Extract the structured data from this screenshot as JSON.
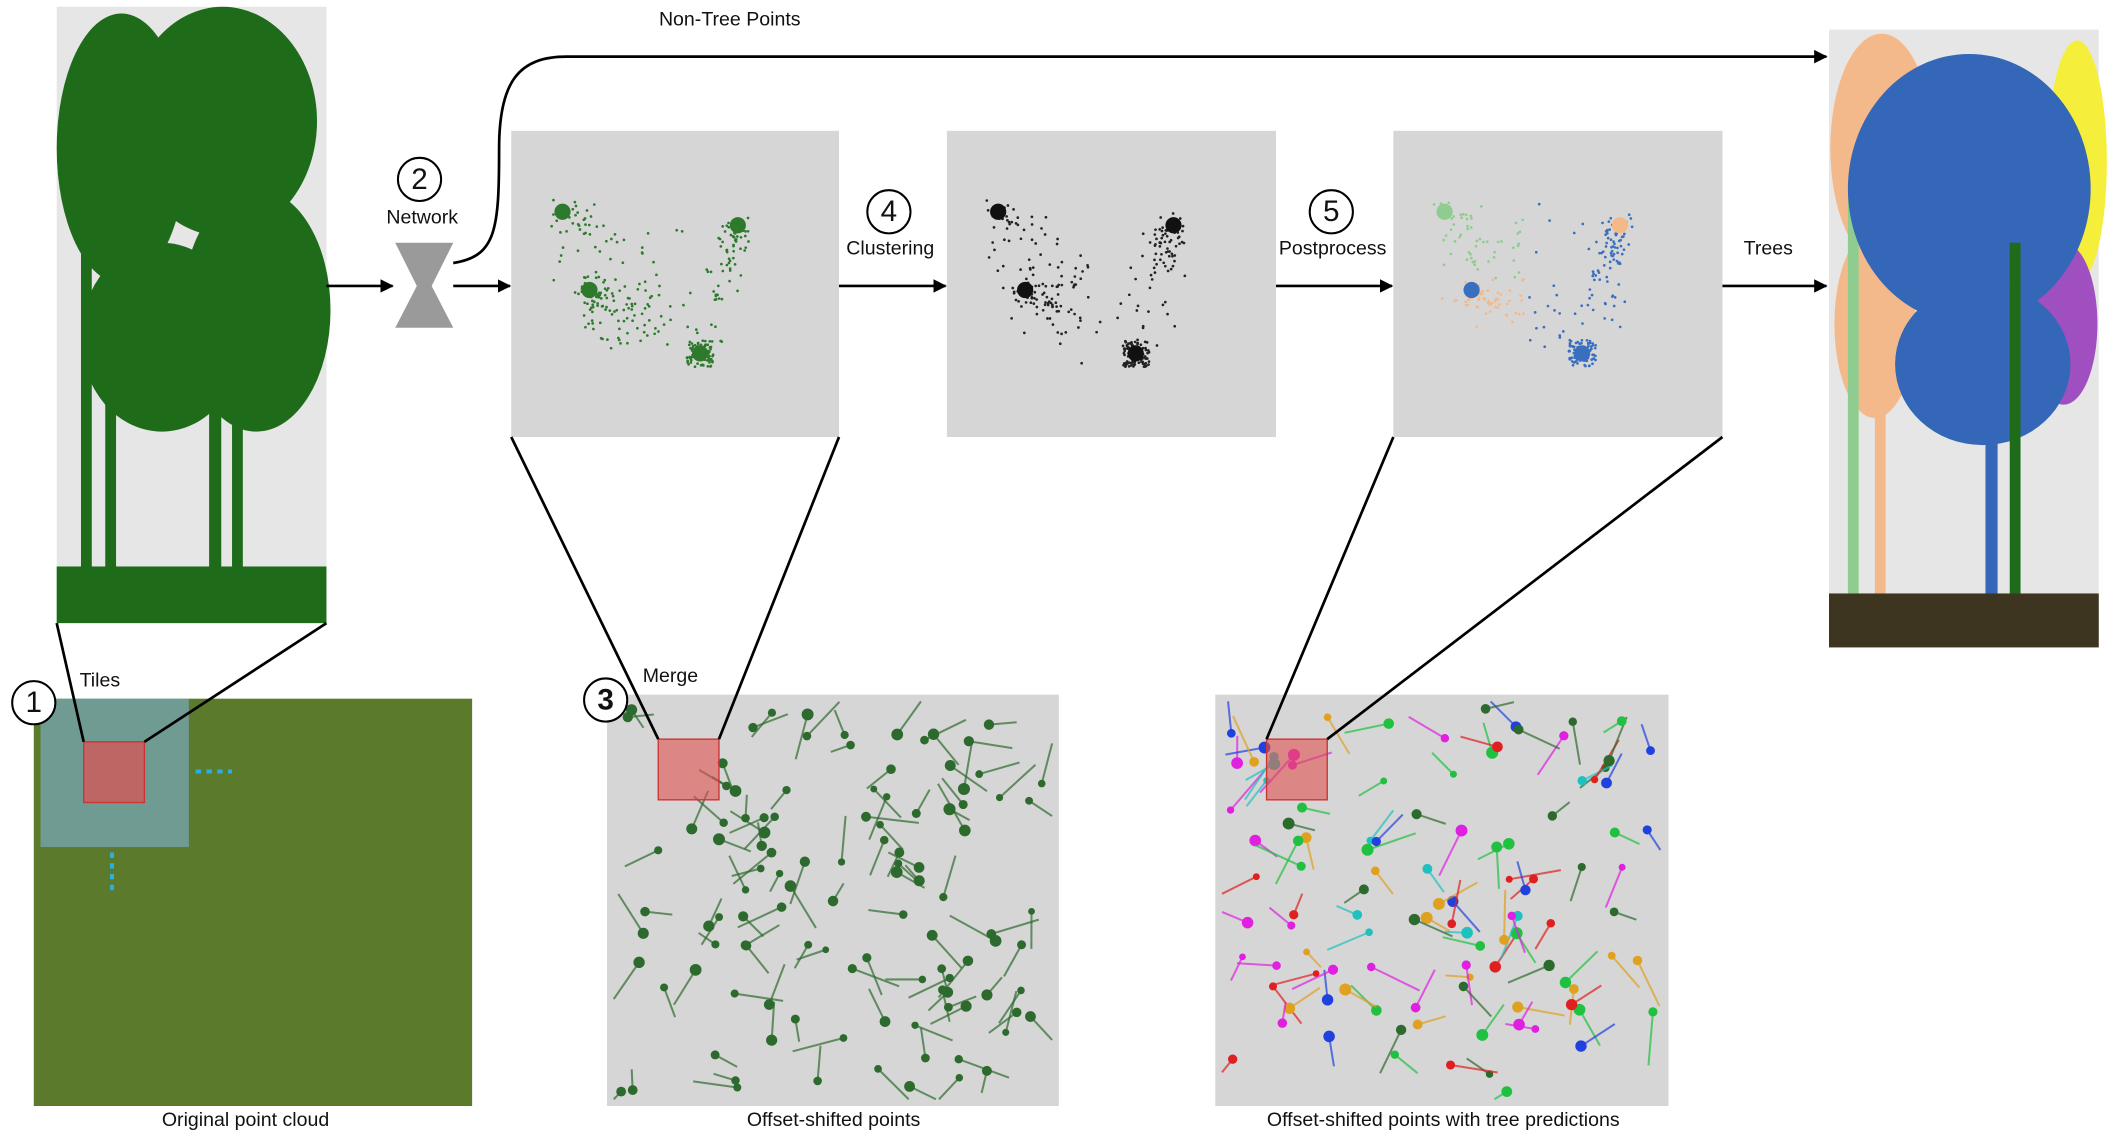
{
  "labels": {
    "non_tree": "Non-Tree Points",
    "network": "Network",
    "clustering": "Clustering",
    "postprocess": "Postprocess",
    "trees": "Trees",
    "tiles": "Tiles",
    "merge": "Merge"
  },
  "steps": [
    "1",
    "2",
    "3",
    "4",
    "5"
  ],
  "captions": [
    "Original point cloud",
    "Offset-shifted points",
    "Offset-shifted points with tree predictions"
  ]
}
